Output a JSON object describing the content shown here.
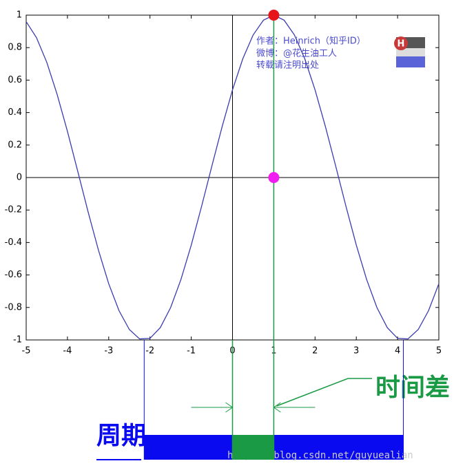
{
  "chart_data": {
    "type": "line",
    "x": [
      -5,
      -4.75,
      -4.5,
      -4.25,
      -4,
      -3.75,
      -3.5,
      -3.25,
      -3,
      -2.75,
      -2.5,
      -2.25,
      -2,
      -1.75,
      -1.5,
      -1.25,
      -1,
      -0.75,
      -0.5,
      -0.25,
      0,
      0.25,
      0.5,
      0.75,
      1,
      1.25,
      1.5,
      1.75,
      2,
      2.25,
      2.5,
      2.75,
      3,
      3.25,
      3.5,
      3.75,
      4,
      4.25,
      4.5,
      4.75,
      5
    ],
    "series": [
      {
        "color": "#3a3ab0",
        "values": [
          0.96,
          0.861,
          0.709,
          0.512,
          0.284,
          0.038,
          -0.211,
          -0.446,
          -0.654,
          -0.82,
          -0.936,
          -0.994,
          -0.99,
          -0.924,
          -0.801,
          -0.628,
          -0.416,
          -0.178,
          0.071,
          0.315,
          0.54,
          0.732,
          0.878,
          0.969,
          1,
          0.969,
          0.878,
          0.732,
          0.54,
          0.315,
          0.071,
          -0.178,
          -0.416,
          -0.628,
          -0.801,
          -0.924,
          -0.99,
          -0.994,
          -0.936,
          -0.82,
          -0.654
        ]
      }
    ],
    "xlim": [
      -5,
      5
    ],
    "ylim": [
      -1,
      1
    ],
    "xticks": [
      -5,
      -4,
      -3,
      -2,
      -1,
      0,
      1,
      2,
      3,
      4,
      5
    ],
    "yticks": [
      -1,
      -0.8,
      -0.6,
      -0.4,
      -0.2,
      0,
      0.2,
      0.4,
      0.6,
      0.8,
      1
    ],
    "markers": [
      {
        "x": 1,
        "y": 1,
        "color": "#e8141c"
      },
      {
        "x": 1,
        "y": 0,
        "color": "#f01cf0"
      }
    ],
    "period": {
      "range": [
        -2.14,
        4.14
      ],
      "label": "周期",
      "color": "#0a0af0"
    },
    "time_difference": {
      "range": [
        0,
        1
      ],
      "label": "时间差",
      "color": "#1a9a44"
    },
    "watermark": [
      "作者：Heinrich（知乎ID）",
      "微博：@花生油工人",
      "转载请注明出处"
    ],
    "logo": "H",
    "url": "https://blog.csdn.net/guyuealian"
  }
}
